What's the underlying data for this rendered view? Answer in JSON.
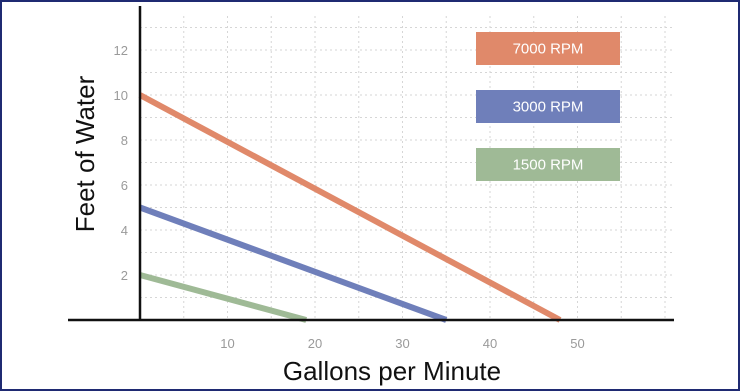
{
  "chart_data": {
    "type": "line",
    "xlabel": "Gallons per Minute",
    "ylabel": "Feet of Water",
    "xlim": [
      0,
      60
    ],
    "ylim": [
      0,
      14
    ],
    "xticks": [
      10,
      20,
      30,
      40,
      50
    ],
    "yticks": [
      2,
      4,
      6,
      8,
      10,
      12
    ],
    "grid": true,
    "legend_position": "top-right",
    "series": [
      {
        "name": "7000 RPM",
        "color": "#e0896a",
        "x": [
          0,
          48
        ],
        "y": [
          10,
          0
        ]
      },
      {
        "name": "3000 RPM",
        "color": "#6f7fba",
        "x": [
          0,
          35
        ],
        "y": [
          5,
          0
        ]
      },
      {
        "name": "1500 RPM",
        "color": "#9fba96",
        "x": [
          0,
          19
        ],
        "y": [
          2,
          0
        ]
      }
    ]
  }
}
